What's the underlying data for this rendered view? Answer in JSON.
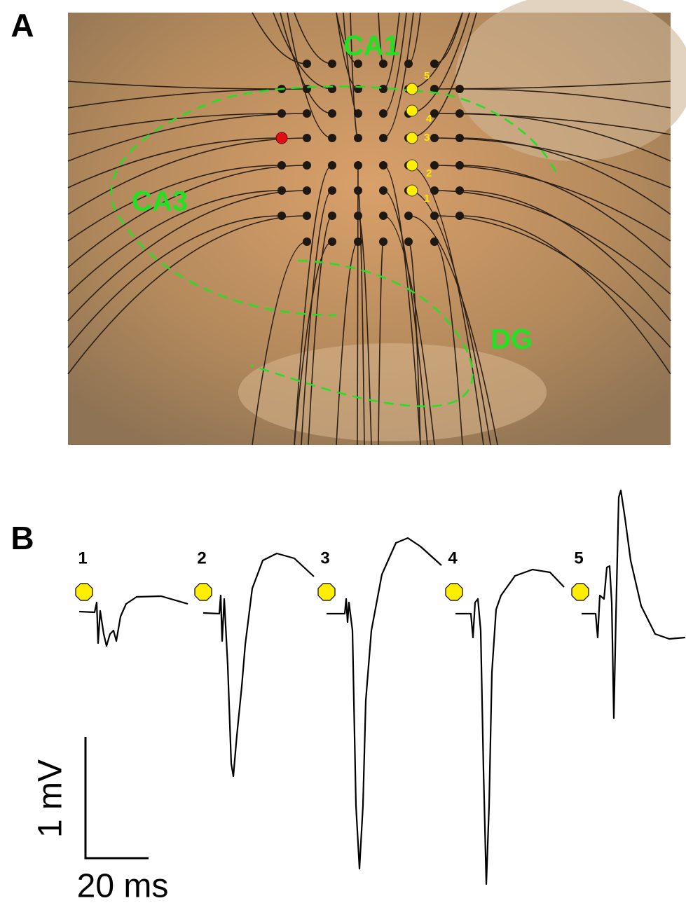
{
  "panel_a": {
    "label": "A",
    "regions": [
      "CA1",
      "CA3",
      "DG"
    ],
    "electrodes": [
      "1",
      "2",
      "3",
      "4",
      "5"
    ]
  },
  "panel_b": {
    "label": "B",
    "traces": [
      "1",
      "2",
      "3",
      "4",
      "5"
    ],
    "scale_bar": {
      "voltage": "1 mV",
      "time": "20 ms"
    }
  }
}
